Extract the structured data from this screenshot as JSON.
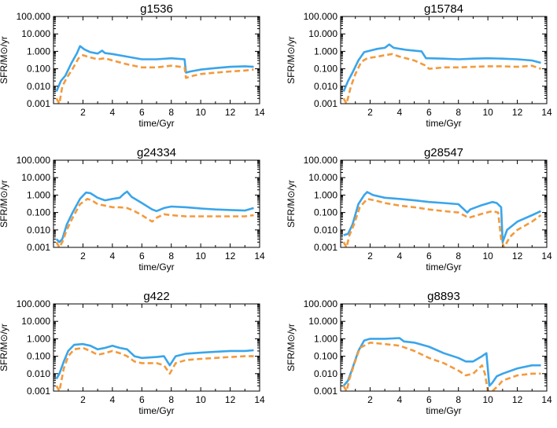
{
  "chart_data": [
    {
      "type": "line",
      "title": "g1536",
      "xlabel": "time/Gyr",
      "ylabel": "SFR/M⊙/yr",
      "xlim": [
        0,
        14
      ],
      "ylim": [
        0.001,
        100
      ],
      "yscale": "log",
      "xticks": [
        2,
        4,
        6,
        8,
        10,
        12,
        14
      ],
      "yticks": [
        0.001,
        0.01,
        0.1,
        1,
        10,
        100
      ],
      "ytick_labels": [
        "0.001",
        "0.010",
        "0.100",
        "1.000",
        "10.000",
        "100.000"
      ],
      "grid": false,
      "series": [
        {
          "style": "solid",
          "color": "#3aa5ea",
          "x": [
            0.2,
            0.5,
            0.8,
            1.2,
            1.6,
            1.8,
            2.1,
            2.5,
            3.0,
            3.3,
            3.5,
            4.0,
            5.0,
            6.0,
            7.0,
            8.0,
            8.9,
            9.0,
            9.3,
            10.0,
            11.0,
            12.0,
            13.0,
            13.6
          ],
          "y": [
            0.005,
            0.02,
            0.04,
            0.2,
            0.8,
            2.0,
            1.3,
            0.9,
            0.75,
            1.1,
            0.8,
            0.7,
            0.5,
            0.35,
            0.35,
            0.4,
            0.35,
            0.06,
            0.07,
            0.09,
            0.11,
            0.13,
            0.14,
            0.13
          ]
        },
        {
          "style": "dashed",
          "color": "#f39a3c",
          "x": [
            0.2,
            0.4,
            0.6,
            0.9,
            1.3,
            1.7,
            2.0,
            2.5,
            3.0,
            3.5,
            4.0,
            5.0,
            6.0,
            7.0,
            8.0,
            8.9,
            9.0,
            9.5,
            10.0,
            11.0,
            12.0,
            13.0,
            13.6
          ],
          "y": [
            0.002,
            0.001,
            0.01,
            0.03,
            0.1,
            0.4,
            0.6,
            0.45,
            0.35,
            0.4,
            0.3,
            0.18,
            0.12,
            0.12,
            0.15,
            0.12,
            0.03,
            0.04,
            0.05,
            0.06,
            0.07,
            0.08,
            0.09
          ]
        }
      ]
    },
    {
      "type": "line",
      "title": "g15784",
      "xlabel": "time/Gyr",
      "ylabel": "SFR/M⊙/yr",
      "xlim": [
        0,
        14
      ],
      "ylim": [
        0.001,
        100
      ],
      "yscale": "log",
      "xticks": [
        2,
        4,
        6,
        8,
        10,
        12,
        14
      ],
      "yticks": [
        0.001,
        0.01,
        0.1,
        1,
        10,
        100
      ],
      "ytick_labels": [
        "0.001",
        "0.010",
        "0.100",
        "1.000",
        "10.000",
        "100.000"
      ],
      "grid": false,
      "series": [
        {
          "style": "solid",
          "color": "#3aa5ea",
          "x": [
            0.2,
            0.5,
            0.8,
            1.2,
            1.6,
            2.0,
            2.5,
            3.0,
            3.3,
            3.6,
            4.5,
            5.5,
            5.8,
            6.0,
            7.0,
            8.0,
            9.0,
            10.0,
            11.0,
            12.0,
            13.0,
            13.6
          ],
          "y": [
            0.005,
            0.02,
            0.06,
            0.3,
            0.9,
            1.1,
            1.4,
            1.6,
            2.5,
            1.6,
            1.2,
            1.0,
            0.4,
            0.4,
            0.38,
            0.35,
            0.38,
            0.4,
            0.38,
            0.35,
            0.3,
            0.22
          ]
        },
        {
          "style": "dashed",
          "color": "#f39a3c",
          "x": [
            0.2,
            0.4,
            0.7,
            1.0,
            1.4,
            1.8,
            2.5,
            3.0,
            3.5,
            4.0,
            5.0,
            5.8,
            6.0,
            7.0,
            8.0,
            9.0,
            10.0,
            11.0,
            12.0,
            13.0,
            13.6
          ],
          "y": [
            0.002,
            0.001,
            0.01,
            0.05,
            0.25,
            0.4,
            0.5,
            0.6,
            0.7,
            0.5,
            0.3,
            0.15,
            0.1,
            0.12,
            0.12,
            0.13,
            0.14,
            0.14,
            0.13,
            0.15,
            0.1
          ]
        }
      ]
    },
    {
      "type": "line",
      "title": "g24334",
      "xlabel": "time/Gyr",
      "ylabel": "SFR/M⊙/yr",
      "xlim": [
        0,
        14
      ],
      "ylim": [
        0.001,
        100
      ],
      "yscale": "log",
      "xticks": [
        2,
        4,
        6,
        8,
        10,
        12,
        14
      ],
      "yticks": [
        0.001,
        0.01,
        0.1,
        1,
        10,
        100
      ],
      "ytick_labels": [
        "0.001",
        "0.010",
        "0.100",
        "1.000",
        "10.000",
        "100.000"
      ],
      "grid": false,
      "series": [
        {
          "style": "solid",
          "color": "#3aa5ea",
          "x": [
            0.2,
            0.4,
            0.6,
            0.9,
            1.3,
            1.8,
            2.2,
            2.5,
            3.0,
            3.5,
            4.0,
            4.5,
            4.8,
            5.0,
            5.3,
            6.0,
            6.7,
            7.0,
            7.5,
            8.0,
            9.0,
            10.0,
            11.0,
            12.0,
            13.0,
            13.6
          ],
          "y": [
            0.003,
            0.002,
            0.003,
            0.02,
            0.1,
            0.6,
            1.4,
            1.3,
            0.7,
            0.5,
            0.6,
            0.7,
            1.2,
            1.6,
            0.8,
            0.35,
            0.15,
            0.12,
            0.18,
            0.22,
            0.2,
            0.17,
            0.15,
            0.14,
            0.13,
            0.18
          ]
        },
        {
          "style": "dashed",
          "color": "#f39a3c",
          "x": [
            0.2,
            0.4,
            0.6,
            0.9,
            1.3,
            1.8,
            2.3,
            2.6,
            3.0,
            3.5,
            4.0,
            4.5,
            5.0,
            5.5,
            6.0,
            6.7,
            7.0,
            7.5,
            8.0,
            9.0,
            10.0,
            11.0,
            12.0,
            13.0,
            13.6
          ],
          "y": [
            0.002,
            0.001,
            0.002,
            0.01,
            0.05,
            0.3,
            0.6,
            0.5,
            0.3,
            0.25,
            0.2,
            0.2,
            0.18,
            0.12,
            0.07,
            0.03,
            0.05,
            0.08,
            0.07,
            0.06,
            0.06,
            0.06,
            0.06,
            0.06,
            0.07
          ]
        }
      ]
    },
    {
      "type": "line",
      "title": "g28547",
      "xlabel": "time/Gyr",
      "ylabel": "SFR/M⊙/yr",
      "xlim": [
        0,
        14
      ],
      "ylim": [
        0.001,
        100
      ],
      "yscale": "log",
      "xticks": [
        2,
        4,
        6,
        8,
        10,
        12,
        14
      ],
      "yticks": [
        0.001,
        0.01,
        0.1,
        1,
        10,
        100
      ],
      "ytick_labels": [
        "0.001",
        "0.010",
        "0.100",
        "1.000",
        "10.000",
        "100.000"
      ],
      "grid": false,
      "series": [
        {
          "style": "solid",
          "color": "#3aa5ea",
          "x": [
            0.2,
            0.5,
            0.8,
            1.2,
            1.6,
            1.8,
            2.2,
            3.0,
            4.0,
            5.0,
            6.0,
            7.0,
            8.0,
            8.6,
            8.8,
            9.5,
            10.3,
            10.6,
            10.9,
            11.0,
            11.3,
            12.0,
            13.0,
            13.6
          ],
          "y": [
            0.005,
            0.006,
            0.02,
            0.3,
            1.0,
            1.5,
            1.0,
            0.7,
            0.6,
            0.5,
            0.4,
            0.35,
            0.3,
            0.1,
            0.15,
            0.25,
            0.4,
            0.35,
            0.2,
            0.002,
            0.01,
            0.03,
            0.07,
            0.12
          ]
        },
        {
          "style": "dashed",
          "color": "#f39a3c",
          "x": [
            0.2,
            0.4,
            0.6,
            0.9,
            1.3,
            1.8,
            2.3,
            3.0,
            4.0,
            5.0,
            6.0,
            7.0,
            8.0,
            8.7,
            9.5,
            10.3,
            10.7,
            10.9,
            11.1,
            11.5,
            12.0,
            13.0,
            13.6
          ],
          "y": [
            0.002,
            0.001,
            0.005,
            0.02,
            0.2,
            0.6,
            0.5,
            0.35,
            0.25,
            0.2,
            0.15,
            0.12,
            0.1,
            0.05,
            0.08,
            0.12,
            0.1,
            0.003,
            0.001,
            0.004,
            0.01,
            0.03,
            0.07
          ]
        }
      ]
    },
    {
      "type": "line",
      "title": "g422",
      "xlabel": "time/Gyr",
      "ylabel": "SFR/M⊙/yr",
      "xlim": [
        0,
        14
      ],
      "ylim": [
        0.001,
        100
      ],
      "yscale": "log",
      "xticks": [
        2,
        4,
        6,
        8,
        10,
        12,
        14
      ],
      "yticks": [
        0.001,
        0.01,
        0.1,
        1,
        10,
        100
      ],
      "ytick_labels": [
        "0.001",
        "0.010",
        "0.100",
        "1.000",
        "10.000",
        "100.000"
      ],
      "grid": false,
      "series": [
        {
          "style": "solid",
          "color": "#3aa5ea",
          "x": [
            0.2,
            0.4,
            0.7,
            1.0,
            1.4,
            2.0,
            2.5,
            3.0,
            3.5,
            4.0,
            4.5,
            5.0,
            5.5,
            6.0,
            7.0,
            7.5,
            7.9,
            8.3,
            9.0,
            10.0,
            11.0,
            12.0,
            13.0,
            13.6
          ],
          "y": [
            0.005,
            0.01,
            0.05,
            0.2,
            0.45,
            0.5,
            0.4,
            0.25,
            0.3,
            0.4,
            0.3,
            0.25,
            0.1,
            0.08,
            0.09,
            0.1,
            0.03,
            0.1,
            0.14,
            0.16,
            0.18,
            0.2,
            0.2,
            0.22
          ]
        },
        {
          "style": "dashed",
          "color": "#f39a3c",
          "x": [
            0.2,
            0.4,
            0.7,
            1.0,
            1.4,
            2.0,
            2.5,
            3.0,
            3.5,
            4.0,
            4.5,
            5.0,
            5.5,
            6.0,
            7.0,
            7.5,
            7.9,
            8.3,
            9.0,
            10.0,
            11.0,
            12.0,
            13.0,
            13.6
          ],
          "y": [
            0.002,
            0.001,
            0.02,
            0.1,
            0.25,
            0.3,
            0.2,
            0.12,
            0.15,
            0.2,
            0.15,
            0.1,
            0.05,
            0.04,
            0.04,
            0.03,
            0.01,
            0.04,
            0.06,
            0.07,
            0.08,
            0.09,
            0.1,
            0.1
          ]
        }
      ]
    },
    {
      "type": "line",
      "title": "g8893",
      "xlabel": "time/Gyr",
      "ylabel": "SFR/M⊙/yr",
      "xlim": [
        0,
        14
      ],
      "ylim": [
        0.001,
        100
      ],
      "yscale": "log",
      "xticks": [
        2,
        4,
        6,
        8,
        10,
        12,
        14
      ],
      "yticks": [
        0.001,
        0.01,
        0.1,
        1,
        10,
        100
      ],
      "ytick_labels": [
        "0.001",
        "0.010",
        "0.100",
        "1.000",
        "10.000",
        "100.000"
      ],
      "grid": false,
      "series": [
        {
          "style": "solid",
          "color": "#3aa5ea",
          "x": [
            0.2,
            0.5,
            0.8,
            1.2,
            1.6,
            2.0,
            3.0,
            4.0,
            4.3,
            5.0,
            6.0,
            7.0,
            8.0,
            8.5,
            9.0,
            9.6,
            9.9,
            10.1,
            10.3,
            10.6,
            11.0,
            12.0,
            13.0,
            13.6
          ],
          "y": [
            0.002,
            0.004,
            0.02,
            0.2,
            0.8,
            1.0,
            1.0,
            1.1,
            0.7,
            0.6,
            0.35,
            0.15,
            0.08,
            0.05,
            0.05,
            0.1,
            0.15,
            0.002,
            0.003,
            0.007,
            0.01,
            0.02,
            0.03,
            0.03
          ]
        },
        {
          "style": "dashed",
          "color": "#f39a3c",
          "x": [
            0.2,
            0.4,
            0.6,
            0.9,
            1.3,
            2.0,
            3.0,
            4.0,
            5.0,
            6.0,
            7.0,
            8.0,
            8.5,
            9.0,
            9.6,
            9.8,
            10.0,
            10.3,
            10.7,
            11.0,
            12.0,
            13.0,
            13.6
          ],
          "y": [
            0.002,
            0.001,
            0.005,
            0.03,
            0.3,
            0.6,
            0.5,
            0.4,
            0.2,
            0.08,
            0.04,
            0.015,
            0.008,
            0.01,
            0.03,
            0.01,
            0.001,
            0.001,
            0.002,
            0.004,
            0.008,
            0.01,
            0.01
          ]
        }
      ]
    }
  ]
}
